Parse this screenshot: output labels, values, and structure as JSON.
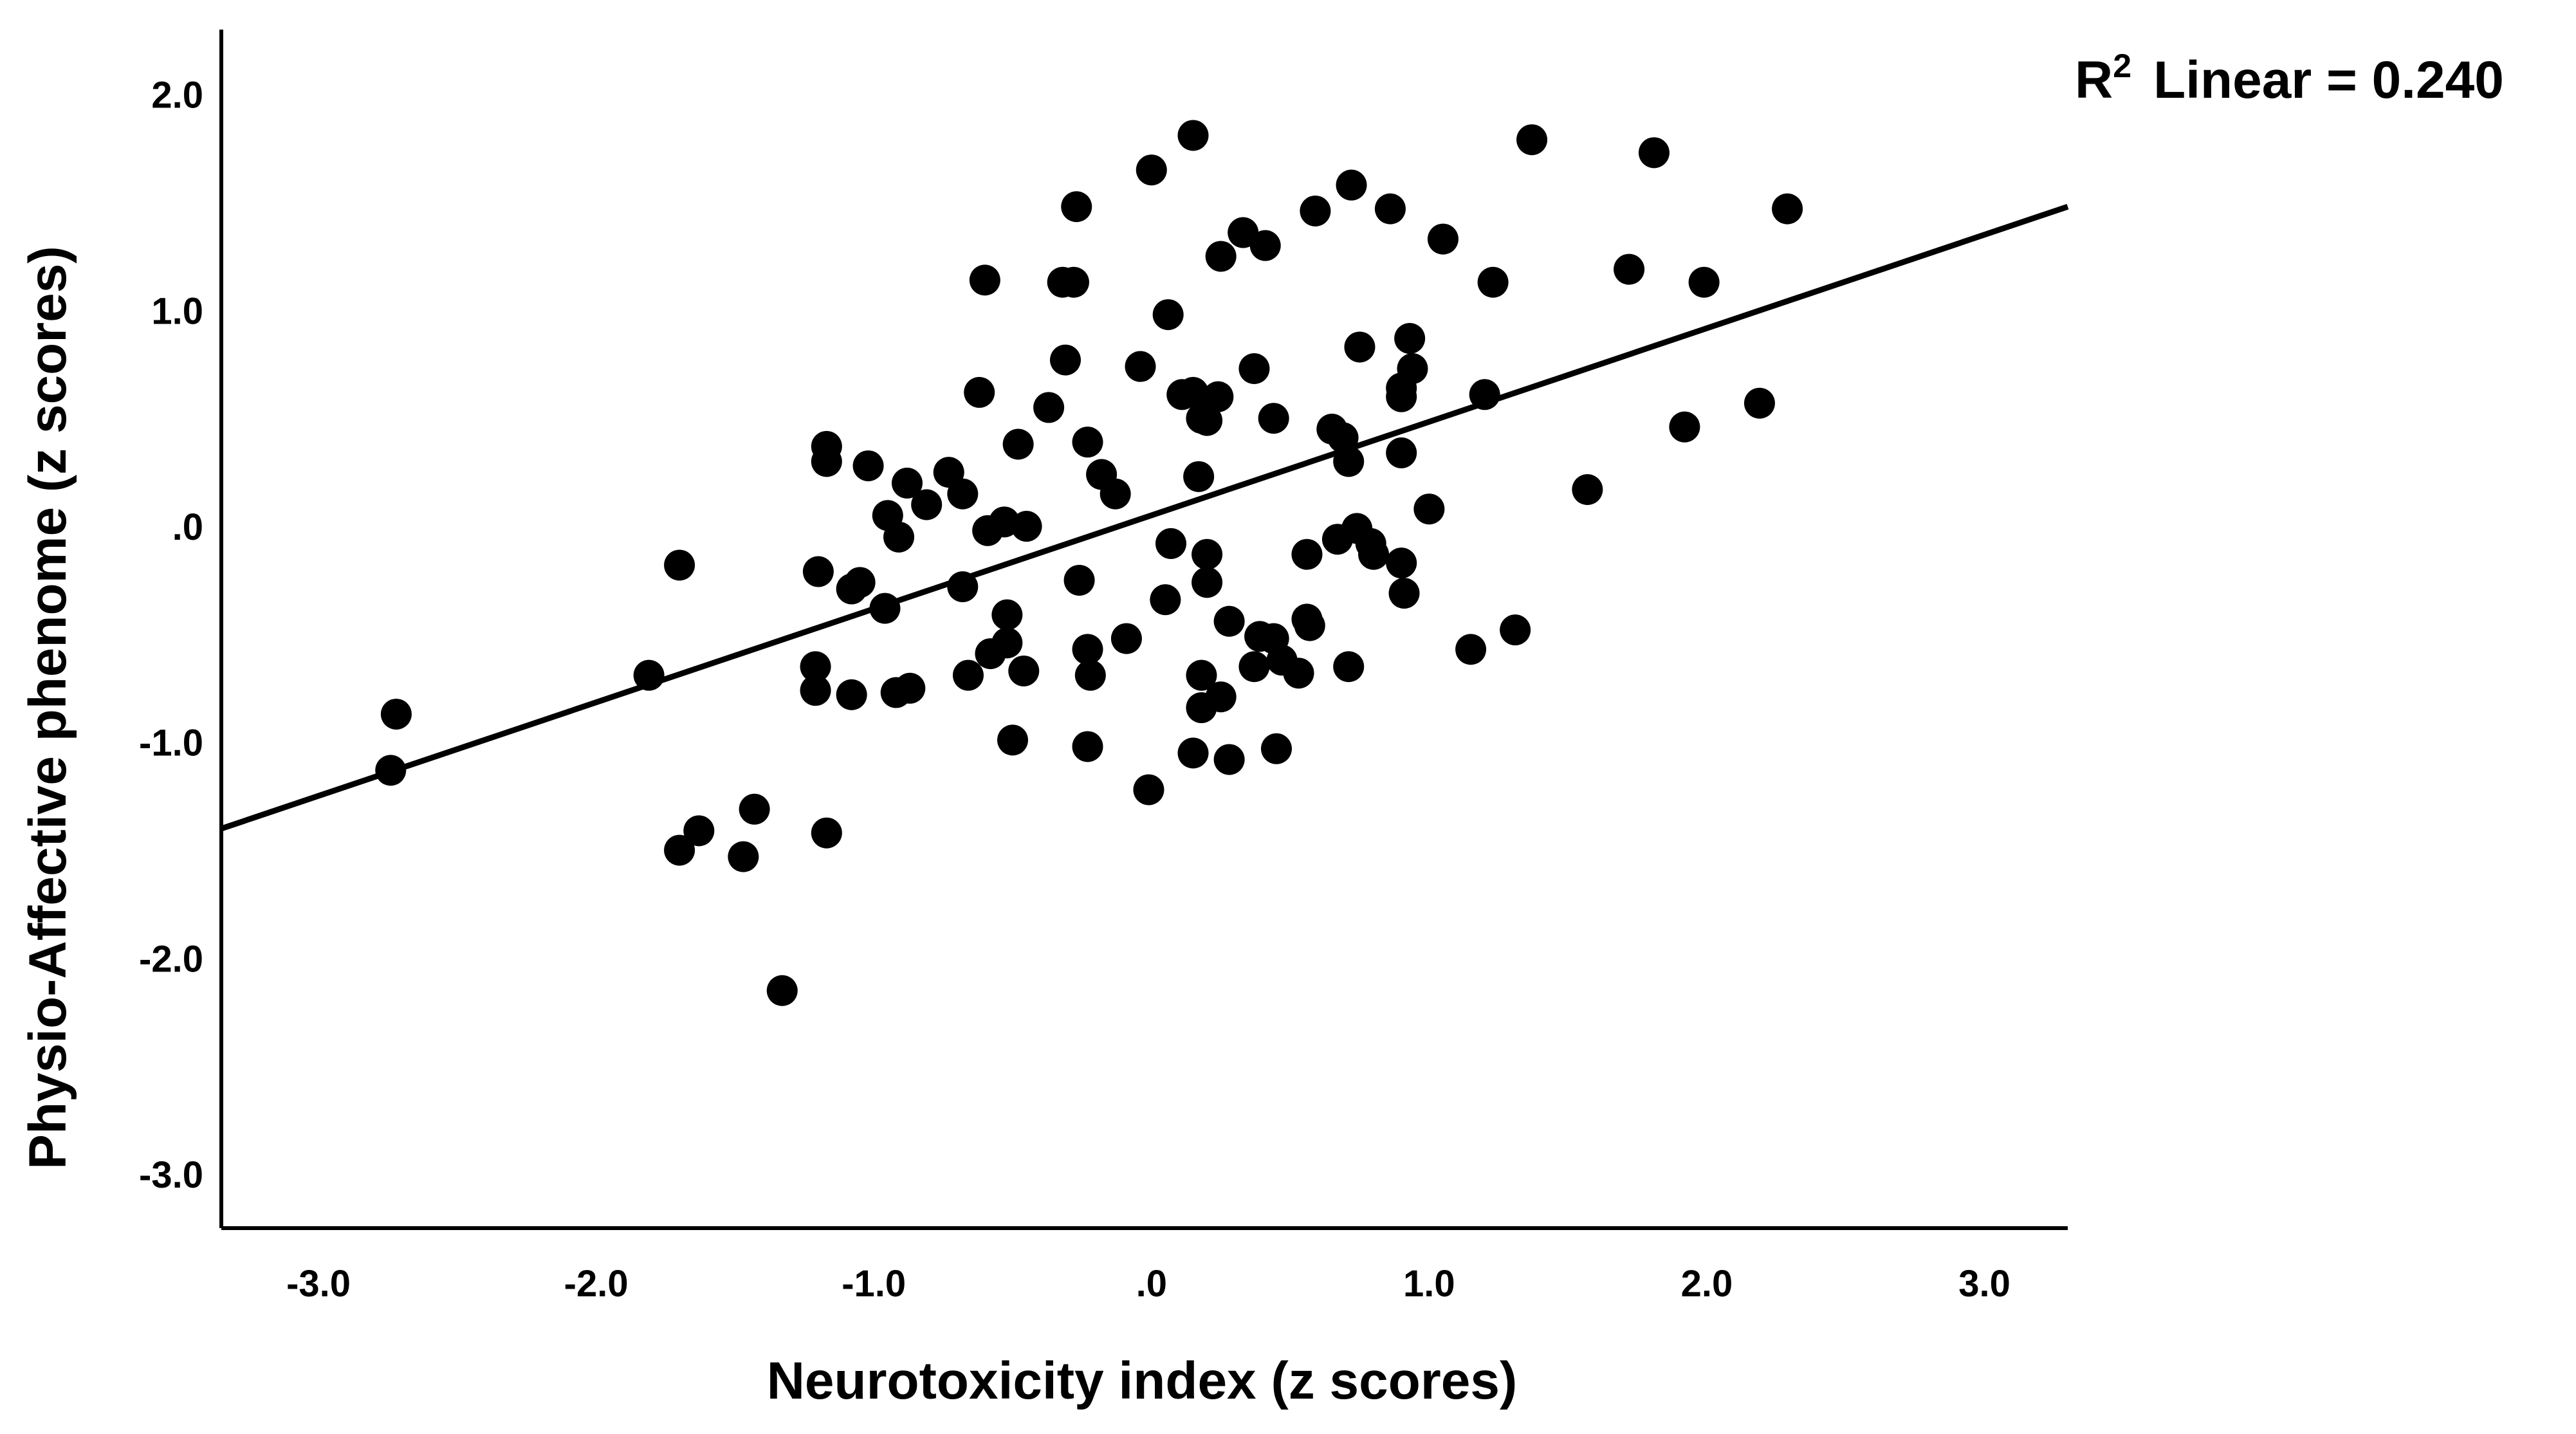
{
  "chart_data": {
    "type": "scatter",
    "title": "",
    "xlabel": "Neurotoxicity index (z scores)",
    "ylabel": "Physio-Affective phenome (z scores)",
    "xlim": [
      -3.35,
      3.3
    ],
    "ylim": [
      -3.25,
      2.3
    ],
    "x_ticks": [
      -3.0,
      -2.0,
      -1.0,
      0.0,
      1.0,
      2.0,
      3.0
    ],
    "x_tick_labels": [
      "-3.0",
      "-2.0",
      "-1.0",
      ".0",
      "1.0",
      "2.0",
      "3.0"
    ],
    "y_ticks": [
      2.0,
      1.0,
      0.0,
      -1.0,
      -2.0,
      -3.0
    ],
    "y_tick_labels": [
      "2.0",
      "1.0",
      ".0",
      "-1.0",
      "-2.0",
      "-3.0"
    ],
    "grid": false,
    "marker_color": "#000000",
    "fit_line": {
      "type": "linear",
      "r2_label": {
        "base": "R",
        "sup": "2",
        "text": "Linear = 0.240"
      },
      "points": [
        [
          -3.35,
          -1.4
        ],
        [
          3.3,
          1.48
        ]
      ]
    },
    "points": [
      [
        -2.72,
        -0.87
      ],
      [
        -2.74,
        -1.13
      ],
      [
        -1.81,
        -0.69
      ],
      [
        -1.7,
        -0.18
      ],
      [
        -1.7,
        -1.5
      ],
      [
        -1.63,
        -1.41
      ],
      [
        -1.47,
        -1.53
      ],
      [
        -1.43,
        -1.31
      ],
      [
        -1.33,
        -2.15
      ],
      [
        -1.2,
        -0.21
      ],
      [
        -1.21,
        -0.65
      ],
      [
        -1.21,
        -0.76
      ],
      [
        -1.17,
        0.37
      ],
      [
        -1.17,
        0.3
      ],
      [
        -1.17,
        -1.42
      ],
      [
        -1.08,
        -0.78
      ],
      [
        -1.08,
        -0.29
      ],
      [
        -1.05,
        -0.26
      ],
      [
        -1.02,
        0.28
      ],
      [
        -0.95,
        0.05
      ],
      [
        -0.96,
        -0.38
      ],
      [
        -0.92,
        -0.77
      ],
      [
        -0.91,
        -0.05
      ],
      [
        -0.88,
        0.2
      ],
      [
        -0.87,
        -0.75
      ],
      [
        -0.81,
        0.1
      ],
      [
        -0.73,
        0.25
      ],
      [
        -0.68,
        0.15
      ],
      [
        -0.68,
        -0.28
      ],
      [
        -0.66,
        -0.69
      ],
      [
        -0.62,
        0.62
      ],
      [
        -0.6,
        1.14
      ],
      [
        -0.58,
        -0.59
      ],
      [
        -0.59,
        -0.02
      ],
      [
        -0.53,
        0.02
      ],
      [
        -0.52,
        -0.41
      ],
      [
        -0.52,
        -0.54
      ],
      [
        -0.5,
        -0.99
      ],
      [
        -0.48,
        0.38
      ],
      [
        -0.45,
        0.0
      ],
      [
        -0.46,
        -0.67
      ],
      [
        -0.37,
        0.55
      ],
      [
        -0.32,
        1.13
      ],
      [
        -0.28,
        1.13
      ],
      [
        -0.31,
        0.77
      ],
      [
        -0.27,
        1.48
      ],
      [
        -0.26,
        -0.25
      ],
      [
        -0.23,
        0.39
      ],
      [
        -0.23,
        -0.57
      ],
      [
        -0.22,
        -0.69
      ],
      [
        -0.23,
        -1.02
      ],
      [
        -0.18,
        0.24
      ],
      [
        -0.13,
        0.15
      ],
      [
        -0.09,
        -0.52
      ],
      [
        -0.04,
        0.74
      ],
      [
        0.0,
        1.65
      ],
      [
        -0.01,
        -1.22
      ],
      [
        0.06,
        0.98
      ],
      [
        0.05,
        -0.34
      ],
      [
        0.07,
        -0.08
      ],
      [
        0.11,
        0.61
      ],
      [
        0.15,
        1.81
      ],
      [
        0.15,
        0.62
      ],
      [
        0.18,
        0.5
      ],
      [
        0.17,
        0.23
      ],
      [
        0.2,
        0.49
      ],
      [
        0.2,
        -0.13
      ],
      [
        0.2,
        -0.26
      ],
      [
        0.18,
        -0.69
      ],
      [
        0.18,
        -0.84
      ],
      [
        0.15,
        -1.05
      ],
      [
        0.24,
        0.6
      ],
      [
        0.25,
        1.25
      ],
      [
        0.25,
        -0.79
      ],
      [
        0.28,
        -0.44
      ],
      [
        0.28,
        -1.08
      ],
      [
        0.33,
        1.36
      ],
      [
        0.37,
        0.73
      ],
      [
        0.37,
        -0.65
      ],
      [
        0.39,
        -0.51
      ],
      [
        0.41,
        1.3
      ],
      [
        0.44,
        0.5
      ],
      [
        0.44,
        -0.52
      ],
      [
        0.45,
        -1.03
      ],
      [
        0.47,
        -0.62
      ],
      [
        0.53,
        -0.68
      ],
      [
        0.56,
        -0.13
      ],
      [
        0.56,
        -0.43
      ],
      [
        0.57,
        -0.46
      ],
      [
        0.59,
        1.46
      ],
      [
        0.65,
        0.45
      ],
      [
        0.67,
        -0.06
      ],
      [
        0.69,
        0.41
      ],
      [
        0.71,
        0.3
      ],
      [
        0.71,
        -0.65
      ],
      [
        0.72,
        1.58
      ],
      [
        0.74,
        -0.01
      ],
      [
        0.75,
        0.83
      ],
      [
        0.79,
        -0.08
      ],
      [
        0.8,
        -0.13
      ],
      [
        0.86,
        1.47
      ],
      [
        0.9,
        0.34
      ],
      [
        0.9,
        0.6
      ],
      [
        0.9,
        0.64
      ],
      [
        0.9,
        -0.17
      ],
      [
        0.91,
        -0.31
      ],
      [
        0.93,
        0.87
      ],
      [
        0.94,
        0.73
      ],
      [
        1.0,
        0.08
      ],
      [
        1.05,
        1.33
      ],
      [
        1.15,
        -0.57
      ],
      [
        1.2,
        0.61
      ],
      [
        1.23,
        1.13
      ],
      [
        1.31,
        -0.48
      ],
      [
        1.37,
        1.79
      ],
      [
        1.57,
        0.17
      ],
      [
        1.72,
        1.19
      ],
      [
        1.81,
        1.73
      ],
      [
        1.92,
        0.46
      ],
      [
        1.99,
        1.13
      ],
      [
        2.19,
        0.57
      ],
      [
        2.29,
        1.47
      ]
    ]
  }
}
